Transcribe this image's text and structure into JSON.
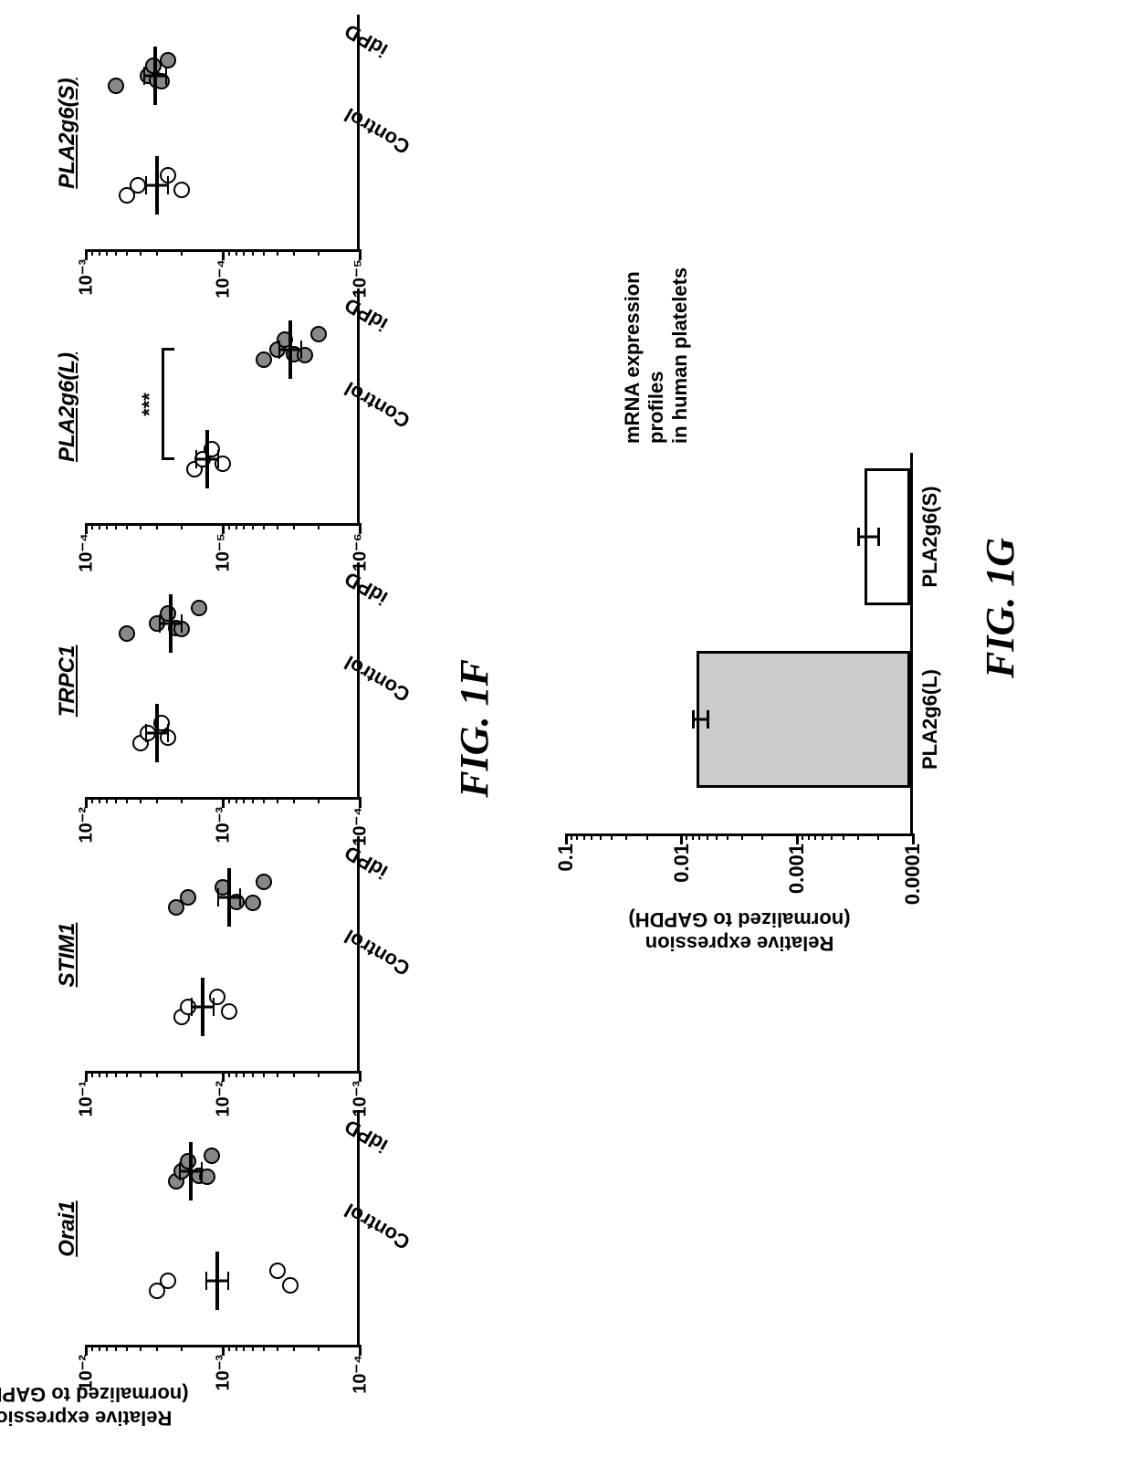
{
  "fig1f": {
    "label": "FIG. 1F",
    "yaxis_label_line1": "Relative expression",
    "yaxis_label_line2": "(normalized to GAPDH)",
    "xcats": [
      "Control",
      "idPD"
    ],
    "panels": [
      {
        "title": "Orai1",
        "type": "scatter-log",
        "ylim": [
          0.0001,
          0.01
        ],
        "yticks": [
          0.0001,
          0.001,
          0.01
        ],
        "ytick_labels": [
          "10⁻⁴",
          "10⁻³",
          "10⁻²"
        ],
        "control": {
          "points": [
            0.003,
            0.0025,
            0.0004,
            0.00032
          ],
          "median": 0.0011
        },
        "idpd": {
          "points": [
            0.0022,
            0.002,
            0.0018,
            0.0015,
            0.0013,
            0.0012
          ],
          "median": 0.0017
        },
        "marker_open_fill": "#ffffff",
        "marker_fill": "#888888",
        "marker_border": "#000000",
        "sig": null
      },
      {
        "title": "STIM1",
        "type": "scatter-log",
        "ylim": [
          0.001,
          0.1
        ],
        "yticks": [
          0.001,
          0.01,
          0.1
        ],
        "ytick_labels": [
          "10⁻³",
          "10⁻²",
          "10⁻¹"
        ],
        "control": {
          "points": [
            0.02,
            0.018,
            0.011,
            0.009
          ],
          "median": 0.014
        },
        "idpd": {
          "points": [
            0.022,
            0.018,
            0.01,
            0.008,
            0.006,
            0.005
          ],
          "median": 0.009
        },
        "marker_open_fill": "#ffffff",
        "marker_fill": "#888888",
        "marker_border": "#000000",
        "sig": null
      },
      {
        "title": "TRPC1",
        "type": "scatter-log",
        "ylim": [
          0.0001,
          0.01
        ],
        "yticks": [
          0.0001,
          0.001,
          0.01
        ],
        "ytick_labels": [
          "10⁻⁴",
          "10⁻³",
          "10⁻²"
        ],
        "control": {
          "points": [
            0.004,
            0.0035,
            0.0028,
            0.0025
          ],
          "median": 0.003
        },
        "idpd": {
          "points": [
            0.005,
            0.003,
            0.0025,
            0.0022,
            0.002,
            0.0015
          ],
          "median": 0.0024
        },
        "marker_open_fill": "#ffffff",
        "marker_fill": "#888888",
        "marker_border": "#000000",
        "sig": null
      },
      {
        "title": "PLA2g6(L)",
        "type": "scatter-log",
        "ylim": [
          1e-06,
          0.0001
        ],
        "yticks": [
          1e-06,
          1e-05,
          0.0001
        ],
        "ytick_labels": [
          "10⁻⁶",
          "10⁻⁵",
          "10⁻⁴"
        ],
        "control": {
          "points": [
            1.6e-05,
            1.4e-05,
            1.2e-05,
            1e-05
          ],
          "median": 1.3e-05
        },
        "idpd": {
          "points": [
            5e-06,
            4e-06,
            3.5e-06,
            3e-06,
            2.5e-06,
            2e-06
          ],
          "median": 3.2e-06
        },
        "marker_open_fill": "#ffffff",
        "marker_fill": "#888888",
        "marker_border": "#000000",
        "sig": "***"
      },
      {
        "title": "PLA2g6(S)",
        "type": "scatter-log",
        "ylim": [
          1e-05,
          0.001
        ],
        "yticks": [
          1e-05,
          0.0001,
          0.001
        ],
        "ytick_labels": [
          "10⁻⁵",
          "10⁻³",
          "10⁻³"
        ],
        "ytick_labels_correct": [
          "10⁻⁵",
          "10⁻⁴",
          "10⁻³"
        ],
        "control": {
          "points": [
            0.0005,
            0.00042,
            0.00025,
            0.0002
          ],
          "median": 0.0003
        },
        "idpd": {
          "points": [
            0.0006,
            0.00035,
            0.00032,
            0.0003,
            0.00028,
            0.00025
          ],
          "median": 0.00031
        },
        "marker_open_fill": "#ffffff",
        "marker_fill": "#888888",
        "marker_border": "#000000",
        "sig": null
      }
    ],
    "background_color": "#ffffff",
    "axis_color": "#000000",
    "axis_width": 3,
    "marker_size": 18,
    "title_fontsize": 24,
    "tick_fontsize": 20
  },
  "fig1g": {
    "label": "FIG. 1G",
    "type": "bar-log",
    "yaxis_label_line1": "Relative expression",
    "yaxis_label_line2": "(normalized to GAPDH)",
    "side_label_line1": "mRNA expression profiles",
    "side_label_line2": "in human platelets",
    "ylim": [
      0.0001,
      0.1
    ],
    "yticks": [
      0.0001,
      0.001,
      0.01,
      0.1
    ],
    "ytick_labels": [
      "0.0001",
      "0.001",
      "0.01",
      "0.1"
    ],
    "bars": [
      {
        "label": "PLA2g6(L)",
        "value": 0.007,
        "err": 0.001,
        "fill": "#cccccc"
      },
      {
        "label": "PLA2g6(S)",
        "value": 0.00025,
        "err": 5e-05,
        "fill": "#ffffff"
      }
    ],
    "background_color": "#ffffff",
    "axis_color": "#000000",
    "axis_width": 3,
    "bar_border": "#000000",
    "label_fontsize": 22
  }
}
